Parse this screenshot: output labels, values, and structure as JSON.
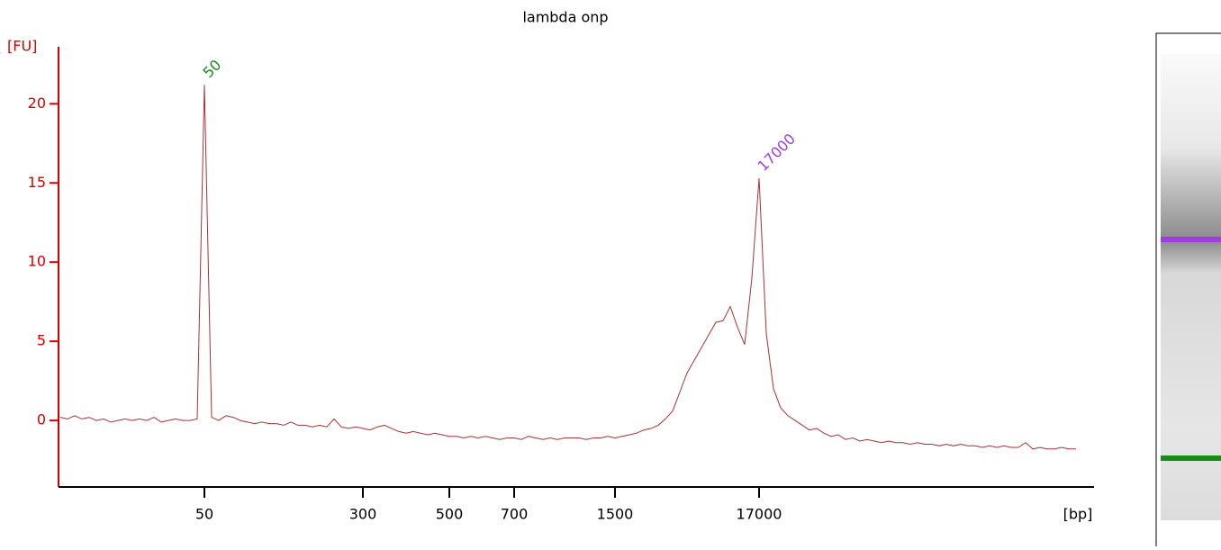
{
  "chart_data": {
    "type": "line",
    "title": "lambda onp",
    "y_label": "[FU]",
    "x_label": "[bp]",
    "categories": [
      null,
      null,
      null,
      null,
      null,
      null,
      null,
      null,
      null,
      null,
      null,
      null,
      null,
      null,
      null,
      null,
      null,
      null,
      null,
      null,
      "50",
      null,
      null,
      null,
      null,
      null,
      null,
      null,
      null,
      null,
      null,
      null,
      null,
      null,
      null,
      null,
      null,
      null,
      null,
      null,
      null,
      null,
      "300",
      null,
      null,
      null,
      null,
      null,
      null,
      null,
      null,
      null,
      null,
      null,
      "500",
      null,
      null,
      null,
      null,
      null,
      null,
      null,
      null,
      "700",
      null,
      null,
      null,
      null,
      null,
      null,
      null,
      null,
      null,
      null,
      null,
      null,
      null,
      "1500",
      null,
      null,
      null,
      null,
      null,
      null,
      null,
      null,
      null,
      null,
      null,
      null,
      null,
      null,
      null,
      null,
      null,
      null,
      null,
      "17000",
      null,
      null,
      null,
      null,
      null,
      null,
      null,
      null,
      null,
      null,
      null,
      null,
      null,
      null,
      null,
      null,
      null,
      null,
      null,
      null,
      null,
      null,
      null,
      null,
      null,
      null,
      null,
      null,
      null,
      null,
      null,
      null,
      null,
      null,
      null,
      null,
      null,
      null,
      null,
      null,
      null,
      null,
      null,
      null
    ],
    "series": [
      {
        "color": "#a83232",
        "values": [
          0.2,
          0.1,
          0.3,
          0.1,
          0.2,
          0.0,
          0.1,
          -0.1,
          0.0,
          0.1,
          0.0,
          0.1,
          0.0,
          0.2,
          -0.1,
          0.0,
          0.1,
          0.0,
          0.0,
          0.1,
          21.2,
          0.2,
          0.0,
          0.3,
          0.2,
          0.0,
          -0.1,
          -0.2,
          -0.1,
          -0.2,
          -0.2,
          -0.3,
          -0.1,
          -0.3,
          -0.3,
          -0.4,
          -0.3,
          -0.4,
          0.1,
          -0.4,
          -0.5,
          -0.4,
          -0.5,
          -0.6,
          -0.4,
          -0.3,
          -0.5,
          -0.7,
          -0.8,
          -0.7,
          -0.8,
          -0.9,
          -0.8,
          -0.9,
          -1.0,
          -1.0,
          -1.1,
          -1.0,
          -1.1,
          -1.0,
          -1.1,
          -1.2,
          -1.1,
          -1.1,
          -1.2,
          -1.0,
          -1.1,
          -1.2,
          -1.1,
          -1.2,
          -1.1,
          -1.1,
          -1.1,
          -1.2,
          -1.1,
          -1.1,
          -1.0,
          -1.1,
          -1.0,
          -0.9,
          -0.8,
          -0.6,
          -0.5,
          -0.3,
          0.1,
          0.6,
          1.8,
          3.0,
          3.8,
          4.6,
          5.4,
          6.2,
          6.3,
          7.2,
          5.9,
          4.8,
          9.0,
          15.3,
          5.5,
          2.0,
          0.8,
          0.3,
          0.0,
          -0.3,
          -0.6,
          -0.5,
          -0.8,
          -1.0,
          -0.9,
          -1.2,
          -1.1,
          -1.3,
          -1.2,
          -1.3,
          -1.4,
          -1.3,
          -1.4,
          -1.4,
          -1.5,
          -1.4,
          -1.5,
          -1.5,
          -1.6,
          -1.5,
          -1.6,
          -1.5,
          -1.6,
          -1.6,
          -1.7,
          -1.6,
          -1.7,
          -1.6,
          -1.7,
          -1.7,
          -1.4,
          -1.8,
          -1.7,
          -1.8,
          -1.8,
          -1.7,
          -1.8,
          -1.8
        ]
      }
    ],
    "annotations": [
      {
        "text": "50",
        "color": "#1a8a1a"
      },
      {
        "text": "17000",
        "color": "#9b3fe0"
      }
    ],
    "ylim": [
      -4.2,
      23.6
    ],
    "yticks": [
      0,
      5,
      10,
      15,
      20
    ],
    "axis_color": "#d40000"
  }
}
